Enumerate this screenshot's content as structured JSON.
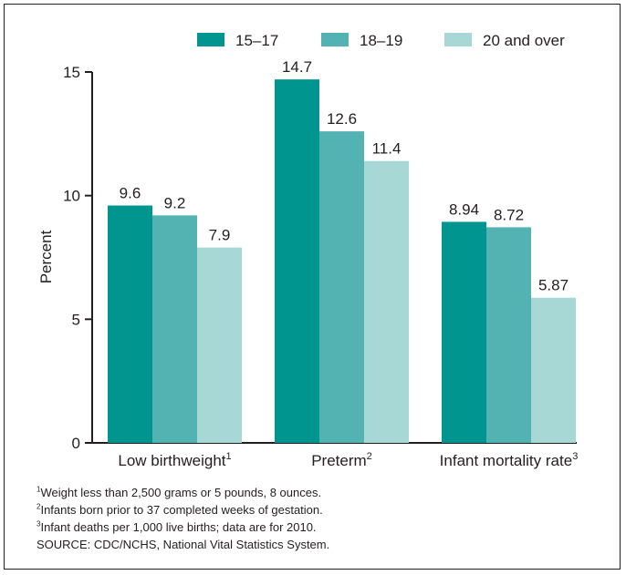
{
  "chart_data": {
    "type": "bar",
    "ylabel": "Percent",
    "ylim": [
      0,
      15
    ],
    "yticks": [
      0,
      5,
      10,
      15
    ],
    "legend_position": "top-right",
    "categories": [
      {
        "label": "Low birthweight",
        "footnote": "1"
      },
      {
        "label": "Preterm",
        "footnote": "2"
      },
      {
        "label": "Infant mortality rate",
        "footnote": "3"
      }
    ],
    "series": [
      {
        "name": "15–17",
        "color": "#00968f",
        "values": [
          9.6,
          14.7,
          8.94
        ],
        "labels": [
          "9.6",
          "14.7",
          "8.94"
        ]
      },
      {
        "name": "18–19",
        "color": "#52b3b2",
        "values": [
          9.2,
          12.6,
          8.72
        ],
        "labels": [
          "9.2",
          "12.6",
          "8.72"
        ]
      },
      {
        "name": "20 and over",
        "color": "#a8d8d6",
        "values": [
          7.9,
          11.4,
          5.87
        ],
        "labels": [
          "7.9",
          "11.4",
          "5.87"
        ]
      }
    ],
    "grid": false
  },
  "footnotes": [
    {
      "mark": "1",
      "text": "Weight less than 2,500 grams or 5 pounds, 8 ounces."
    },
    {
      "mark": "2",
      "text": "Infants born prior to 37 completed weeks of gestation."
    },
    {
      "mark": "3",
      "text": "Infant deaths per 1,000 live births; data are for 2010."
    }
  ],
  "source": "SOURCE: CDC/NCHS, National Vital Statistics System."
}
